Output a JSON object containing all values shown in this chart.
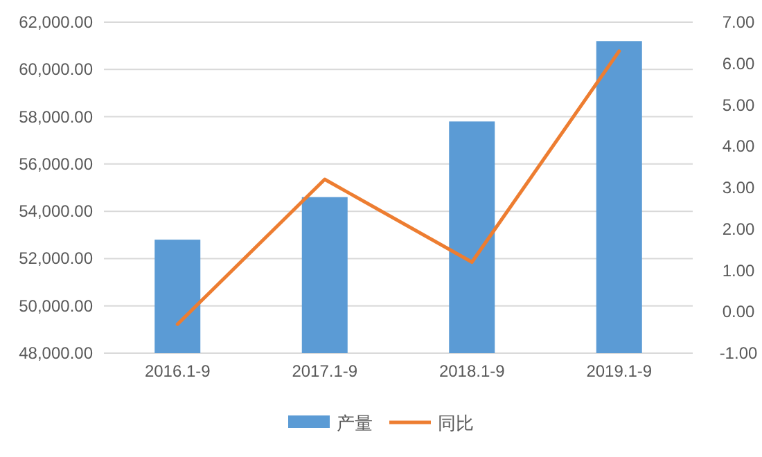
{
  "chart_data": {
    "type": "bar",
    "categories": [
      "2016.1-9",
      "2017.1-9",
      "2018.1-9",
      "2019.1-9"
    ],
    "series": [
      {
        "name": "产量",
        "color": "#5b9bd5",
        "values": [
          52800,
          54600,
          57800,
          61200
        ]
      },
      {
        "name": "同比",
        "type": "line",
        "axis": "y2",
        "color": "#ed7d31",
        "values": [
          -0.3,
          3.2,
          1.2,
          6.3
        ]
      }
    ],
    "ylim": [
      48000,
      62000
    ],
    "yticks": [
      {
        "value": 48000,
        "label": "48,000.00"
      },
      {
        "value": 50000,
        "label": "50,000.00"
      },
      {
        "value": 52000,
        "label": "52,000.00"
      },
      {
        "value": 54000,
        "label": "54,000.00"
      },
      {
        "value": 56000,
        "label": "56,000.00"
      },
      {
        "value": 58000,
        "label": "58,000.00"
      },
      {
        "value": 60000,
        "label": "60,000.00"
      },
      {
        "value": 62000,
        "label": "62,000.00"
      }
    ],
    "y2lim": [
      -1,
      7
    ],
    "y2ticks": [
      {
        "value": -1,
        "label": "-1.00"
      },
      {
        "value": 0,
        "label": "0.00"
      },
      {
        "value": 1,
        "label": "1.00"
      },
      {
        "value": 2,
        "label": "2.00"
      },
      {
        "value": 3,
        "label": "3.00"
      },
      {
        "value": 4,
        "label": "4.00"
      },
      {
        "value": 5,
        "label": "5.00"
      },
      {
        "value": 6,
        "label": "6.00"
      },
      {
        "value": 7,
        "label": "7.00"
      }
    ],
    "grid": "y",
    "legend": "bottom"
  }
}
